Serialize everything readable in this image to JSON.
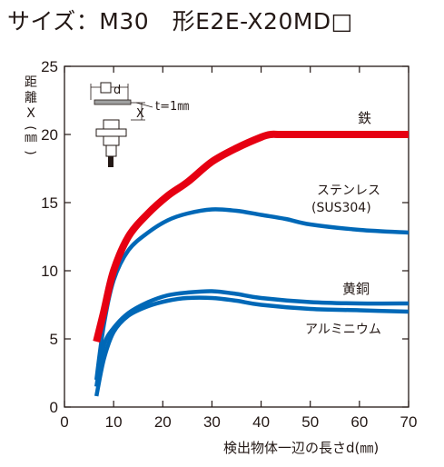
{
  "title": "サイズ：M30　形E2E-X20MD□",
  "chart_data": {
    "type": "line",
    "xlabel": "検出物体一辺の長さd(㎜)",
    "ylabel_chars": [
      "距",
      "離",
      "X",
      "(",
      "㎜",
      ")"
    ],
    "xlim": [
      0,
      70
    ],
    "ylim": [
      0,
      25
    ],
    "xticks": [
      0,
      10,
      20,
      30,
      40,
      50,
      60,
      70
    ],
    "yticks": [
      0,
      5,
      10,
      15,
      20,
      25
    ],
    "grid": false,
    "inset": {
      "d_label": "d",
      "x_label": "X",
      "t_label": "t=1㎜"
    },
    "series": [
      {
        "name": "鉄",
        "color": "#e60012",
        "x": [
          6.5,
          8,
          10,
          13,
          17,
          21,
          25,
          30,
          35,
          40,
          42,
          44,
          50,
          60,
          70
        ],
        "y": [
          4.8,
          7,
          10,
          12.5,
          14.2,
          15.5,
          16.5,
          18,
          19,
          19.8,
          20,
          20,
          20,
          20,
          20
        ]
      },
      {
        "name": "ステンレス\n(SUS304)",
        "color": "#0068b7",
        "x": [
          6.5,
          8,
          10,
          13,
          17,
          21,
          25,
          30,
          35,
          40,
          45,
          50,
          60,
          70
        ],
        "y": [
          2.0,
          6,
          9.3,
          11.5,
          12.8,
          13.7,
          14.2,
          14.5,
          14.4,
          14.1,
          13.8,
          13.4,
          13.0,
          12.8
        ]
      },
      {
        "name": "黄銅",
        "color": "#0068b7",
        "x": [
          6.5,
          8,
          10,
          13,
          17,
          21,
          25,
          30,
          35,
          40,
          50,
          60,
          70
        ],
        "y": [
          1.5,
          4.5,
          5.8,
          6.9,
          7.7,
          8.2,
          8.4,
          8.5,
          8.3,
          8.0,
          7.7,
          7.6,
          7.6
        ]
      },
      {
        "name": "アルミニウム",
        "color": "#0068b7",
        "x": [
          6.5,
          8,
          10,
          13,
          17,
          21,
          25,
          30,
          35,
          40,
          50,
          60,
          70
        ],
        "y": [
          0.8,
          3.5,
          5.5,
          6.7,
          7.4,
          7.8,
          8.0,
          8.0,
          7.8,
          7.5,
          7.2,
          7.1,
          7.0
        ]
      }
    ],
    "line_labels": [
      "鉄",
      "ステンレス",
      "(SUS304)",
      "黄銅",
      "アルミニウム"
    ]
  }
}
